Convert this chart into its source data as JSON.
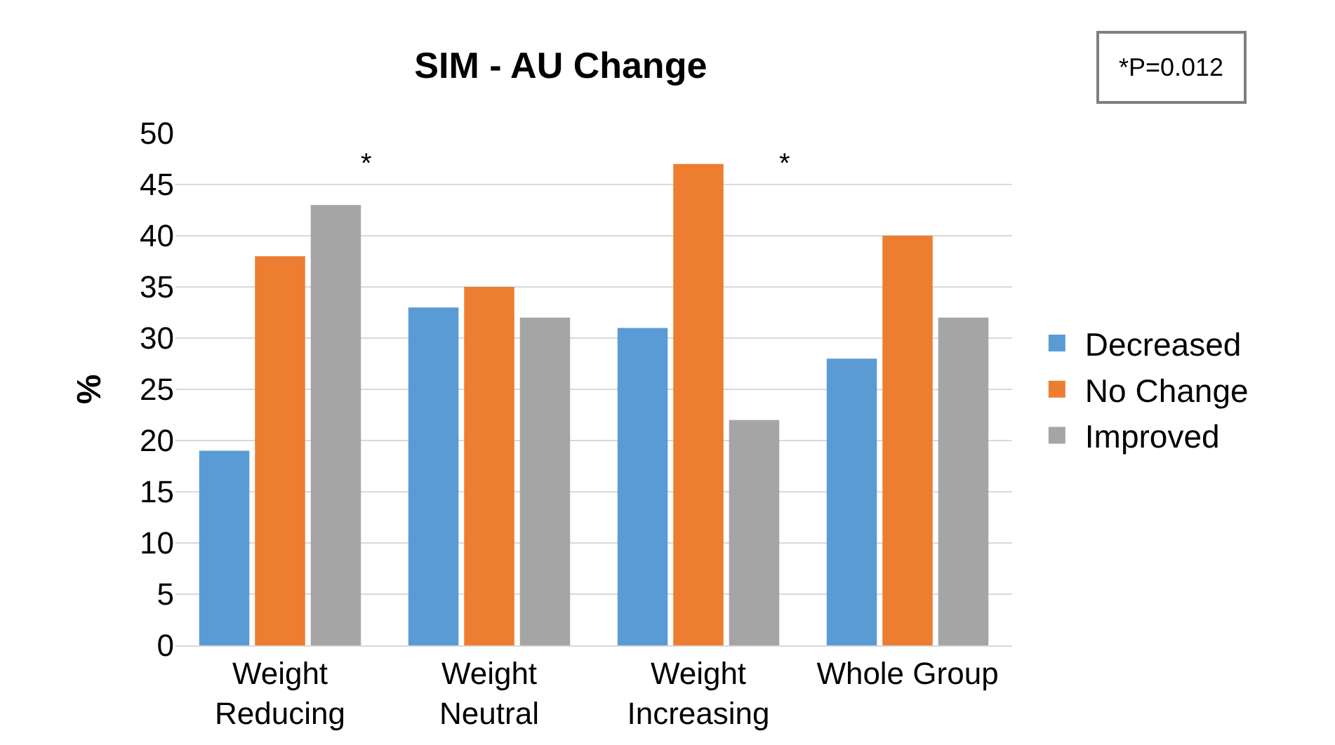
{
  "chart_data": {
    "type": "bar",
    "title": "SIM - AU Change",
    "ylabel": "%",
    "categories": [
      "Weight\nReducing",
      "Weight\nNeutral",
      "Weight\nIncreasing",
      "Whole Group"
    ],
    "series": [
      {
        "name": "Decreased",
        "color": "#5b9bd5",
        "values": [
          19,
          33,
          31,
          28
        ]
      },
      {
        "name": "No Change",
        "color": "#ed7d31",
        "values": [
          38,
          35,
          47,
          40
        ]
      },
      {
        "name": "Improved",
        "color": "#a5a5a5",
        "values": [
          43,
          32,
          22,
          32
        ]
      }
    ],
    "ylim": [
      0,
      50
    ],
    "yticks": [
      0,
      5,
      10,
      15,
      20,
      25,
      30,
      35,
      40,
      45,
      50
    ],
    "grid": "y",
    "legend": "right",
    "annotations": [
      "*",
      "*",
      "*P=0.012"
    ]
  }
}
